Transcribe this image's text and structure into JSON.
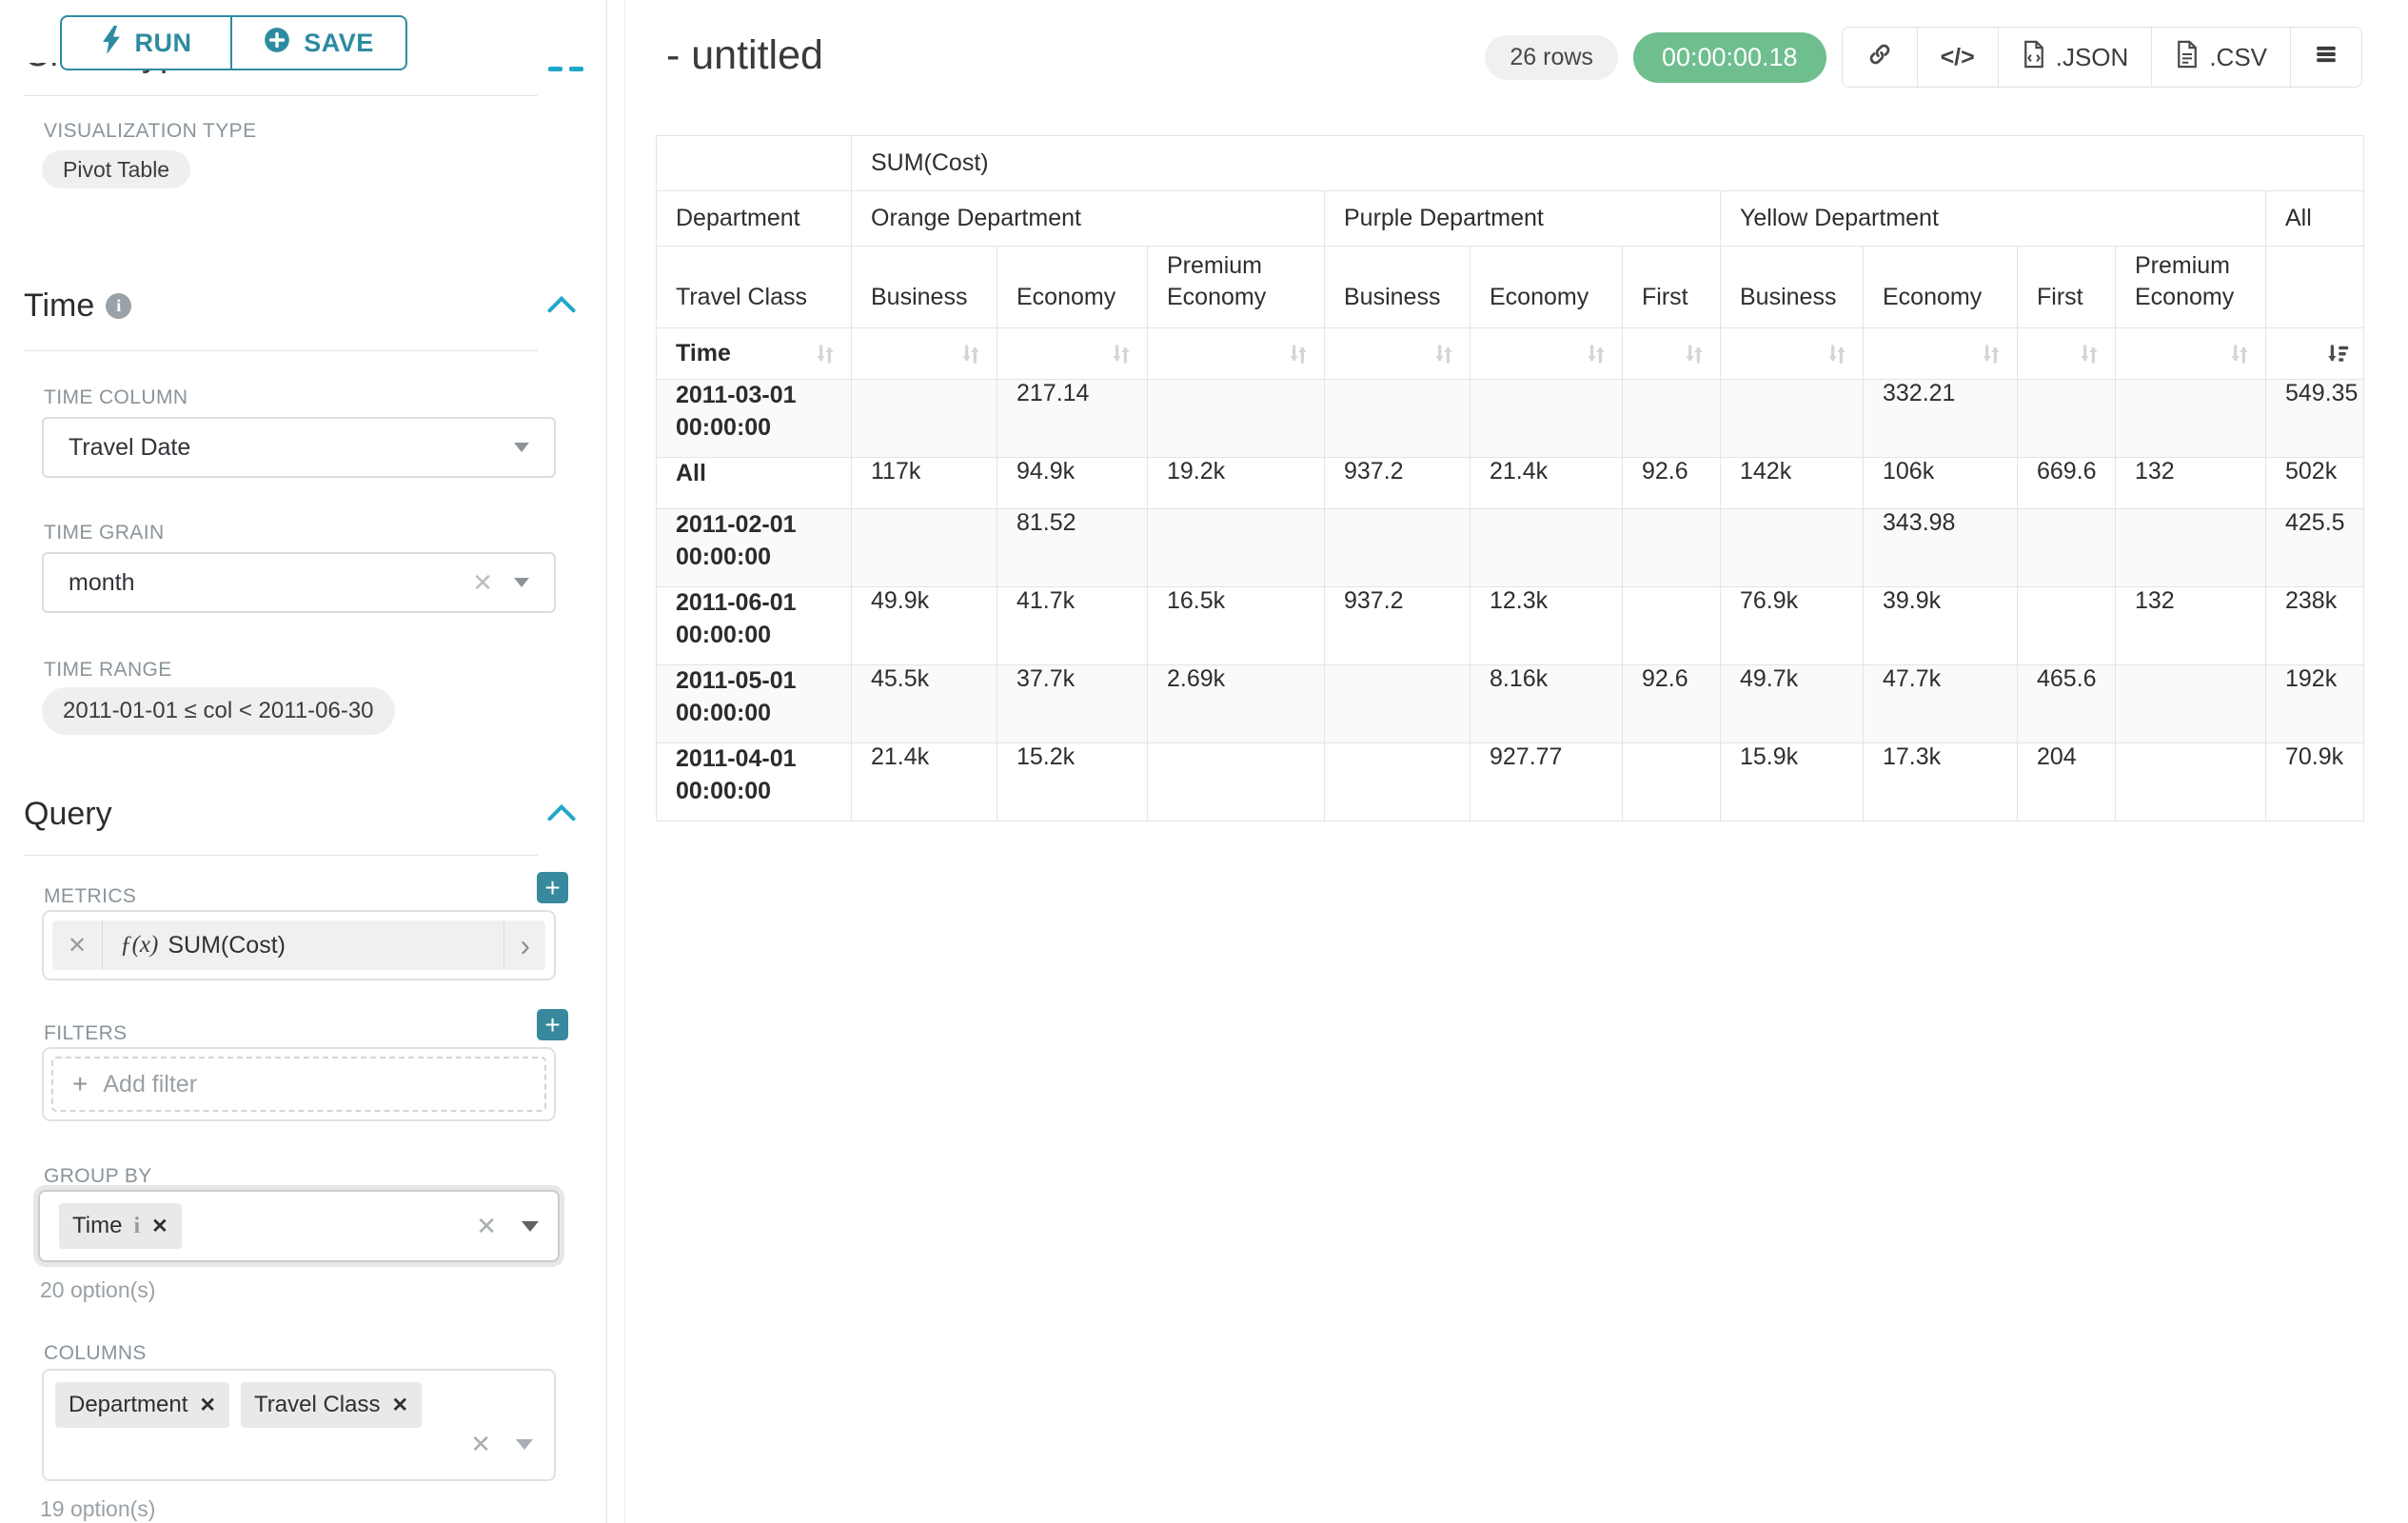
{
  "header": {
    "title": "- untitled",
    "row_count_badge": "26 rows",
    "timer_badge": "00:00:00.18",
    "json_button": ".JSON",
    "csv_button": ".CSV"
  },
  "sidebar": {
    "run_button": "RUN",
    "save_button": "SAVE",
    "chart_type_heading": "Chart Type",
    "visualization": {
      "label": "VISUALIZATION TYPE",
      "value": "Pivot Table"
    },
    "time": {
      "heading": "Time",
      "column_label": "TIME COLUMN",
      "column_value": "Travel Date",
      "grain_label": "TIME GRAIN",
      "grain_value": "month",
      "range_label": "TIME RANGE",
      "range_value": "2011-01-01 ≤ col < 2011-06-30"
    },
    "query": {
      "heading": "Query",
      "metrics_label": "METRICS",
      "metric": {
        "prefix": "ƒ(x)",
        "label": "SUM(Cost)"
      },
      "filters_label": "FILTERS",
      "add_filter": "Add filter",
      "group_by_label": "GROUP BY",
      "group_by_tags": [
        {
          "label": "Time",
          "has_info": true
        }
      ],
      "group_by_hint": "20 option(s)",
      "columns_label": "COLUMNS",
      "columns_tags": [
        {
          "label": "Department"
        },
        {
          "label": "Travel Class"
        }
      ],
      "columns_hint": "19 option(s)"
    }
  },
  "table": {
    "metric_header": "SUM(Cost)",
    "department_header": "Department",
    "travel_class_header": "Travel Class",
    "time_header": "Time",
    "column_groups": [
      {
        "label": "Orange Department",
        "columns": [
          "Business",
          "Economy",
          "Premium Economy"
        ]
      },
      {
        "label": "Purple Department",
        "columns": [
          "Business",
          "Economy",
          "First"
        ]
      },
      {
        "label": "Yellow Department",
        "columns": [
          "Business",
          "Economy",
          "First",
          "Premium Economy"
        ]
      },
      {
        "label": "All",
        "columns": [
          ""
        ]
      }
    ],
    "sort": {
      "active_column": "All",
      "direction": "desc"
    },
    "rows": [
      {
        "label": "2011-03-01 00:00:00",
        "values": [
          "",
          "217.14",
          "",
          "",
          "",
          "",
          "",
          "332.21",
          "",
          "",
          "549.35"
        ]
      },
      {
        "label": "All",
        "values": [
          "117k",
          "94.9k",
          "19.2k",
          "937.2",
          "21.4k",
          "92.6",
          "142k",
          "106k",
          "669.6",
          "132",
          "502k"
        ]
      },
      {
        "label": "2011-02-01 00:00:00",
        "values": [
          "",
          "81.52",
          "",
          "",
          "",
          "",
          "",
          "343.98",
          "",
          "",
          "425.5"
        ]
      },
      {
        "label": "2011-06-01 00:00:00",
        "values": [
          "49.9k",
          "41.7k",
          "16.5k",
          "937.2",
          "12.3k",
          "",
          "76.9k",
          "39.9k",
          "",
          "132",
          "238k"
        ]
      },
      {
        "label": "2011-05-01 00:00:00",
        "values": [
          "45.5k",
          "37.7k",
          "2.69k",
          "",
          "8.16k",
          "92.6",
          "49.7k",
          "47.7k",
          "465.6",
          "",
          "192k"
        ]
      },
      {
        "label": "2011-04-01 00:00:00",
        "values": [
          "21.4k",
          "15.2k",
          "",
          "",
          "927.77",
          "",
          "15.9k",
          "17.3k",
          "204",
          "",
          "70.9k"
        ]
      }
    ]
  },
  "colors": {
    "accent_teal": "#2d8ba1",
    "chevron_blue": "#20a7c9",
    "timer_green": "#6fbe8e"
  }
}
